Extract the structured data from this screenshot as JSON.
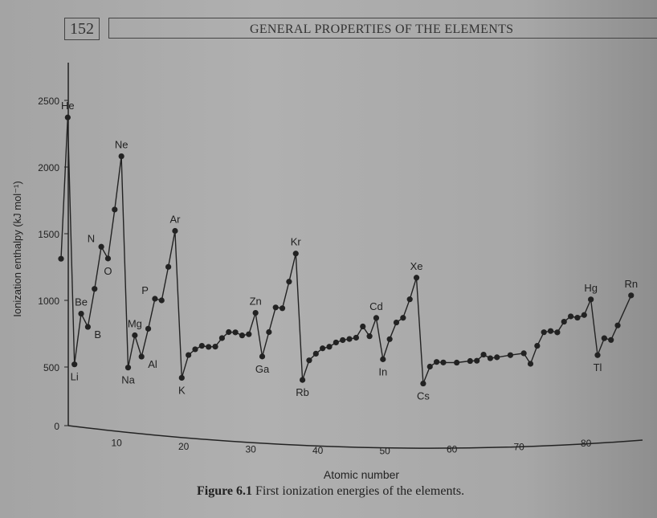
{
  "header": {
    "page_number": "152",
    "running_title": "GENERAL PROPERTIES OF THE ELEMENTS"
  },
  "caption": {
    "label": "Figure 6.1",
    "text": "First ionization energies of the elements."
  },
  "chart_data": {
    "type": "line",
    "title": "",
    "xlabel": "Atomic number",
    "ylabel": "Ionization enthalpy (kJ mol⁻¹)",
    "xlim": [
      0,
      86
    ],
    "ylim": [
      0,
      2600
    ],
    "xticks": [
      10,
      20,
      30,
      40,
      50,
      60,
      70,
      80
    ],
    "yticks": [
      0,
      500,
      1000,
      1500,
      2000,
      2500
    ],
    "grid": false,
    "markers": true,
    "x": [
      1,
      2,
      3,
      4,
      5,
      6,
      7,
      8,
      9,
      10,
      11,
      12,
      13,
      14,
      15,
      16,
      17,
      18,
      19,
      20,
      21,
      22,
      23,
      24,
      25,
      26,
      27,
      28,
      29,
      30,
      31,
      32,
      33,
      34,
      35,
      36,
      37,
      38,
      39,
      40,
      41,
      42,
      43,
      44,
      45,
      46,
      47,
      48,
      49,
      50,
      51,
      52,
      53,
      54,
      55,
      56,
      57,
      58,
      60,
      62,
      63,
      64,
      65,
      66,
      68,
      70,
      71,
      72,
      73,
      74,
      75,
      76,
      77,
      78,
      79,
      80,
      81,
      82,
      83,
      84,
      86
    ],
    "y": [
      1312,
      2372,
      520,
      900,
      801,
      1086,
      1402,
      1314,
      1681,
      2081,
      496,
      738,
      578,
      787,
      1012,
      1000,
      1251,
      1521,
      419,
      590,
      633,
      659,
      651,
      653,
      717,
      762,
      760,
      737,
      746,
      906,
      579,
      762,
      947,
      941,
      1140,
      1351,
      403,
      550,
      600,
      640,
      652,
      684,
      702,
      710,
      720,
      804,
      731,
      868,
      558,
      709,
      834,
      869,
      1008,
      1170,
      376,
      503,
      538,
      534,
      533,
      545,
      547,
      593,
      566,
      573,
      589,
      603,
      524,
      659,
      761,
      770,
      760,
      840,
      880,
      870,
      890,
      1007,
      589,
      716,
      703,
      812,
      1037
    ],
    "point_labels": [
      {
        "z": 2,
        "text": "He",
        "pos": "above"
      },
      {
        "z": 3,
        "text": "Li",
        "pos": "below"
      },
      {
        "z": 4,
        "text": "Be",
        "pos": "above"
      },
      {
        "z": 5,
        "text": "B",
        "pos": "right"
      },
      {
        "z": 7,
        "text": "N",
        "pos": "left"
      },
      {
        "z": 8,
        "text": "O",
        "pos": "below"
      },
      {
        "z": 10,
        "text": "Ne",
        "pos": "above"
      },
      {
        "z": 11,
        "text": "Na",
        "pos": "below"
      },
      {
        "z": 12,
        "text": "Mg",
        "pos": "above"
      },
      {
        "z": 13,
        "text": "Al",
        "pos": "right"
      },
      {
        "z": 15,
        "text": "P",
        "pos": "left"
      },
      {
        "z": 18,
        "text": "Ar",
        "pos": "above"
      },
      {
        "z": 19,
        "text": "K",
        "pos": "below"
      },
      {
        "z": 30,
        "text": "Zn",
        "pos": "above"
      },
      {
        "z": 31,
        "text": "Ga",
        "pos": "below"
      },
      {
        "z": 36,
        "text": "Kr",
        "pos": "above"
      },
      {
        "z": 37,
        "text": "Rb",
        "pos": "below"
      },
      {
        "z": 48,
        "text": "Cd",
        "pos": "above"
      },
      {
        "z": 49,
        "text": "In",
        "pos": "below"
      },
      {
        "z": 54,
        "text": "Xe",
        "pos": "above"
      },
      {
        "z": 55,
        "text": "Cs",
        "pos": "below"
      },
      {
        "z": 80,
        "text": "Hg",
        "pos": "above"
      },
      {
        "z": 81,
        "text": "Tl",
        "pos": "below"
      },
      {
        "z": 86,
        "text": "Rn",
        "pos": "above"
      }
    ],
    "colors": {
      "ink": "#222222",
      "paper": "#ababab"
    }
  }
}
